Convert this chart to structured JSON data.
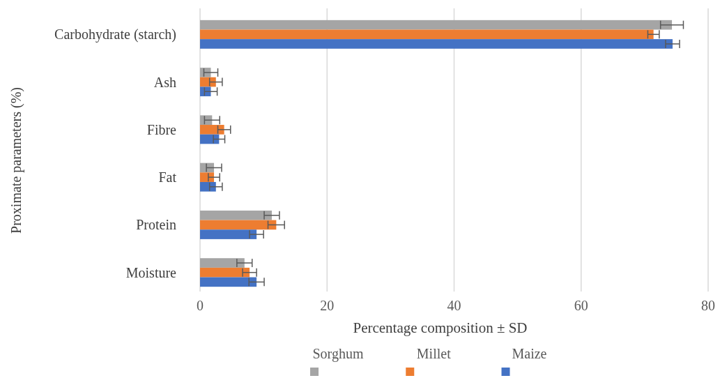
{
  "chart_data": {
    "type": "bar",
    "orientation": "horizontal",
    "xlabel": "Percentage composition ± SD",
    "ylabel": "Proximate parameters (%)",
    "categories": [
      "Carbohydrate (starch)",
      "Ash",
      "Fibre",
      "Fat",
      "Protein",
      "Moisture"
    ],
    "series": [
      {
        "name": "Sorghum",
        "color": "#a5a5a5",
        "values": [
          74.3,
          1.7,
          1.9,
          2.2,
          11.3,
          7.0
        ],
        "errors": [
          1.8,
          1.1,
          1.2,
          1.2,
          1.2,
          1.2
        ]
      },
      {
        "name": "Millet",
        "color": "#ed7d31",
        "values": [
          71.4,
          2.5,
          3.8,
          2.2,
          12.0,
          7.8
        ],
        "errors": [
          0.9,
          1.0,
          1.0,
          0.9,
          1.3,
          1.1
        ]
      },
      {
        "name": "Maize",
        "color": "#4472c4",
        "values": [
          74.4,
          1.7,
          3.0,
          2.5,
          8.9,
          8.9
        ],
        "errors": [
          1.1,
          1.0,
          0.9,
          1.0,
          1.1,
          1.2
        ]
      }
    ],
    "xlim": [
      0,
      80
    ],
    "xticks": [
      0,
      20,
      40,
      60,
      80
    ],
    "grid": "x",
    "legend": "bottom"
  }
}
